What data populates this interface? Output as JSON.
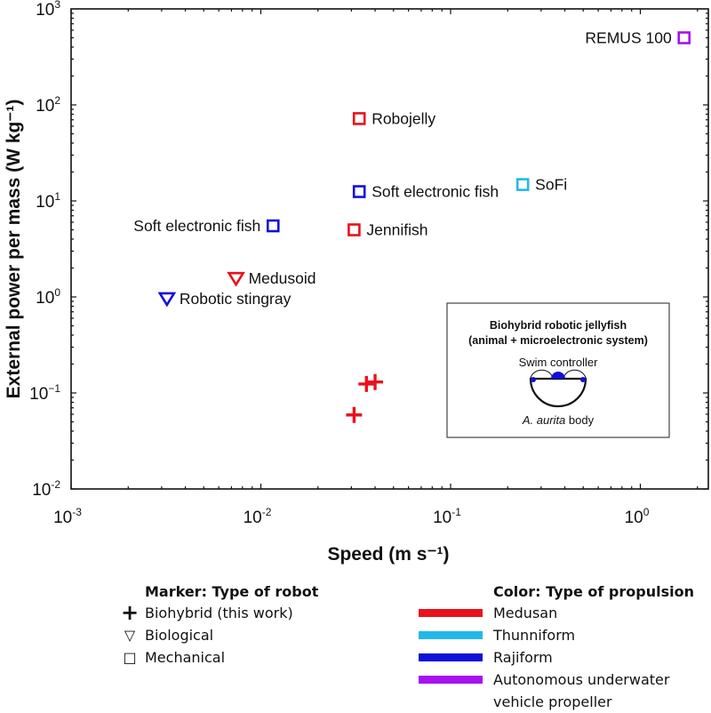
{
  "chart_data": {
    "type": "scatter",
    "title": "",
    "xlabel": "Speed (m s⁻¹)",
    "ylabel": "External power per mass (W kg⁻¹)",
    "xscale": "log",
    "yscale": "log",
    "xlim": [
      0.001,
      2.0
    ],
    "ylim": [
      0.01,
      1000
    ],
    "x_ticks": [
      {
        "value": 0.001,
        "base": "10",
        "exp": "-3"
      },
      {
        "value": 0.01,
        "base": "10",
        "exp": "-2"
      },
      {
        "value": 0.1,
        "base": "10",
        "exp": "-1"
      },
      {
        "value": 1,
        "base": "10",
        "exp": "0"
      }
    ],
    "y_ticks": [
      {
        "value": 0.01,
        "base": "10",
        "exp": "-2"
      },
      {
        "value": 0.1,
        "base": "10",
        "exp": "−1"
      },
      {
        "value": 1,
        "base": "10",
        "exp": "0"
      },
      {
        "value": 10,
        "base": "10",
        "exp": "1"
      },
      {
        "value": 100,
        "base": "10",
        "exp": "2"
      },
      {
        "value": 1000,
        "base": "10",
        "exp": "3"
      }
    ],
    "grid": false,
    "points": [
      {
        "label": "REMUS 100",
        "x": 1.7,
        "y": 500,
        "marker": "square",
        "propulsion": "auv",
        "label_side": "left"
      },
      {
        "label": "Robojelly",
        "x": 0.033,
        "y": 72,
        "marker": "square",
        "propulsion": "medusan",
        "label_side": "right"
      },
      {
        "label": "Soft electronic fish",
        "x": 0.033,
        "y": 12.5,
        "marker": "square",
        "propulsion": "rajiform",
        "label_side": "right"
      },
      {
        "label": "SoFi",
        "x": 0.24,
        "y": 14.8,
        "marker": "square",
        "propulsion": "thunniform",
        "label_side": "right"
      },
      {
        "label": "Jennifish",
        "x": 0.031,
        "y": 5.0,
        "marker": "square",
        "propulsion": "medusan",
        "label_side": "right"
      },
      {
        "label": "Soft electronic fish",
        "x": 0.0116,
        "y": 5.5,
        "marker": "square",
        "propulsion": "rajiform",
        "label_side": "left"
      },
      {
        "label": "Medusoid",
        "x": 0.0074,
        "y": 1.56,
        "marker": "triangle",
        "propulsion": "medusan",
        "label_side": "right"
      },
      {
        "label": "Robotic stingray",
        "x": 0.0032,
        "y": 0.96,
        "marker": "triangle",
        "propulsion": "rajiform",
        "label_side": "right"
      },
      {
        "label": "",
        "x": 0.031,
        "y": 0.059,
        "marker": "plus",
        "propulsion": "medusan",
        "label_side": "none"
      },
      {
        "label": "",
        "x": 0.036,
        "y": 0.124,
        "marker": "plus",
        "propulsion": "medusan",
        "label_side": "none"
      },
      {
        "label": "",
        "x": 0.04,
        "y": 0.13,
        "marker": "plus",
        "propulsion": "medusan",
        "label_side": "none"
      }
    ],
    "colors": {
      "medusan": "#e8121c",
      "thunniform": "#22b8ec",
      "rajiform": "#1010d8",
      "auv": "#a811f0"
    },
    "inset": {
      "title_line1": "Biohybrid robotic jellyfish",
      "title_line2": "(animal + microelectronic system)",
      "controller_label": "Swim controller",
      "body_label_italic": "A. aurita",
      "body_label_rest": " body"
    }
  },
  "legend": {
    "marker_title": "Marker: Type of robot",
    "markers": [
      {
        "symbol": "+",
        "label": "Biohybrid (this work)"
      },
      {
        "symbol": "▽",
        "label": "Biological"
      },
      {
        "symbol": "□",
        "label": "Mechanical"
      }
    ],
    "color_title": "Color: Type of propulsion",
    "colors": [
      {
        "color": "#e8121c",
        "label": "Medusan"
      },
      {
        "color": "#22b8ec",
        "label": "Thunniform"
      },
      {
        "color": "#1010d8",
        "label": "Rajiform"
      },
      {
        "color": "#a811f0",
        "label": "Autonomous underwater vehicle propeller"
      }
    ]
  }
}
